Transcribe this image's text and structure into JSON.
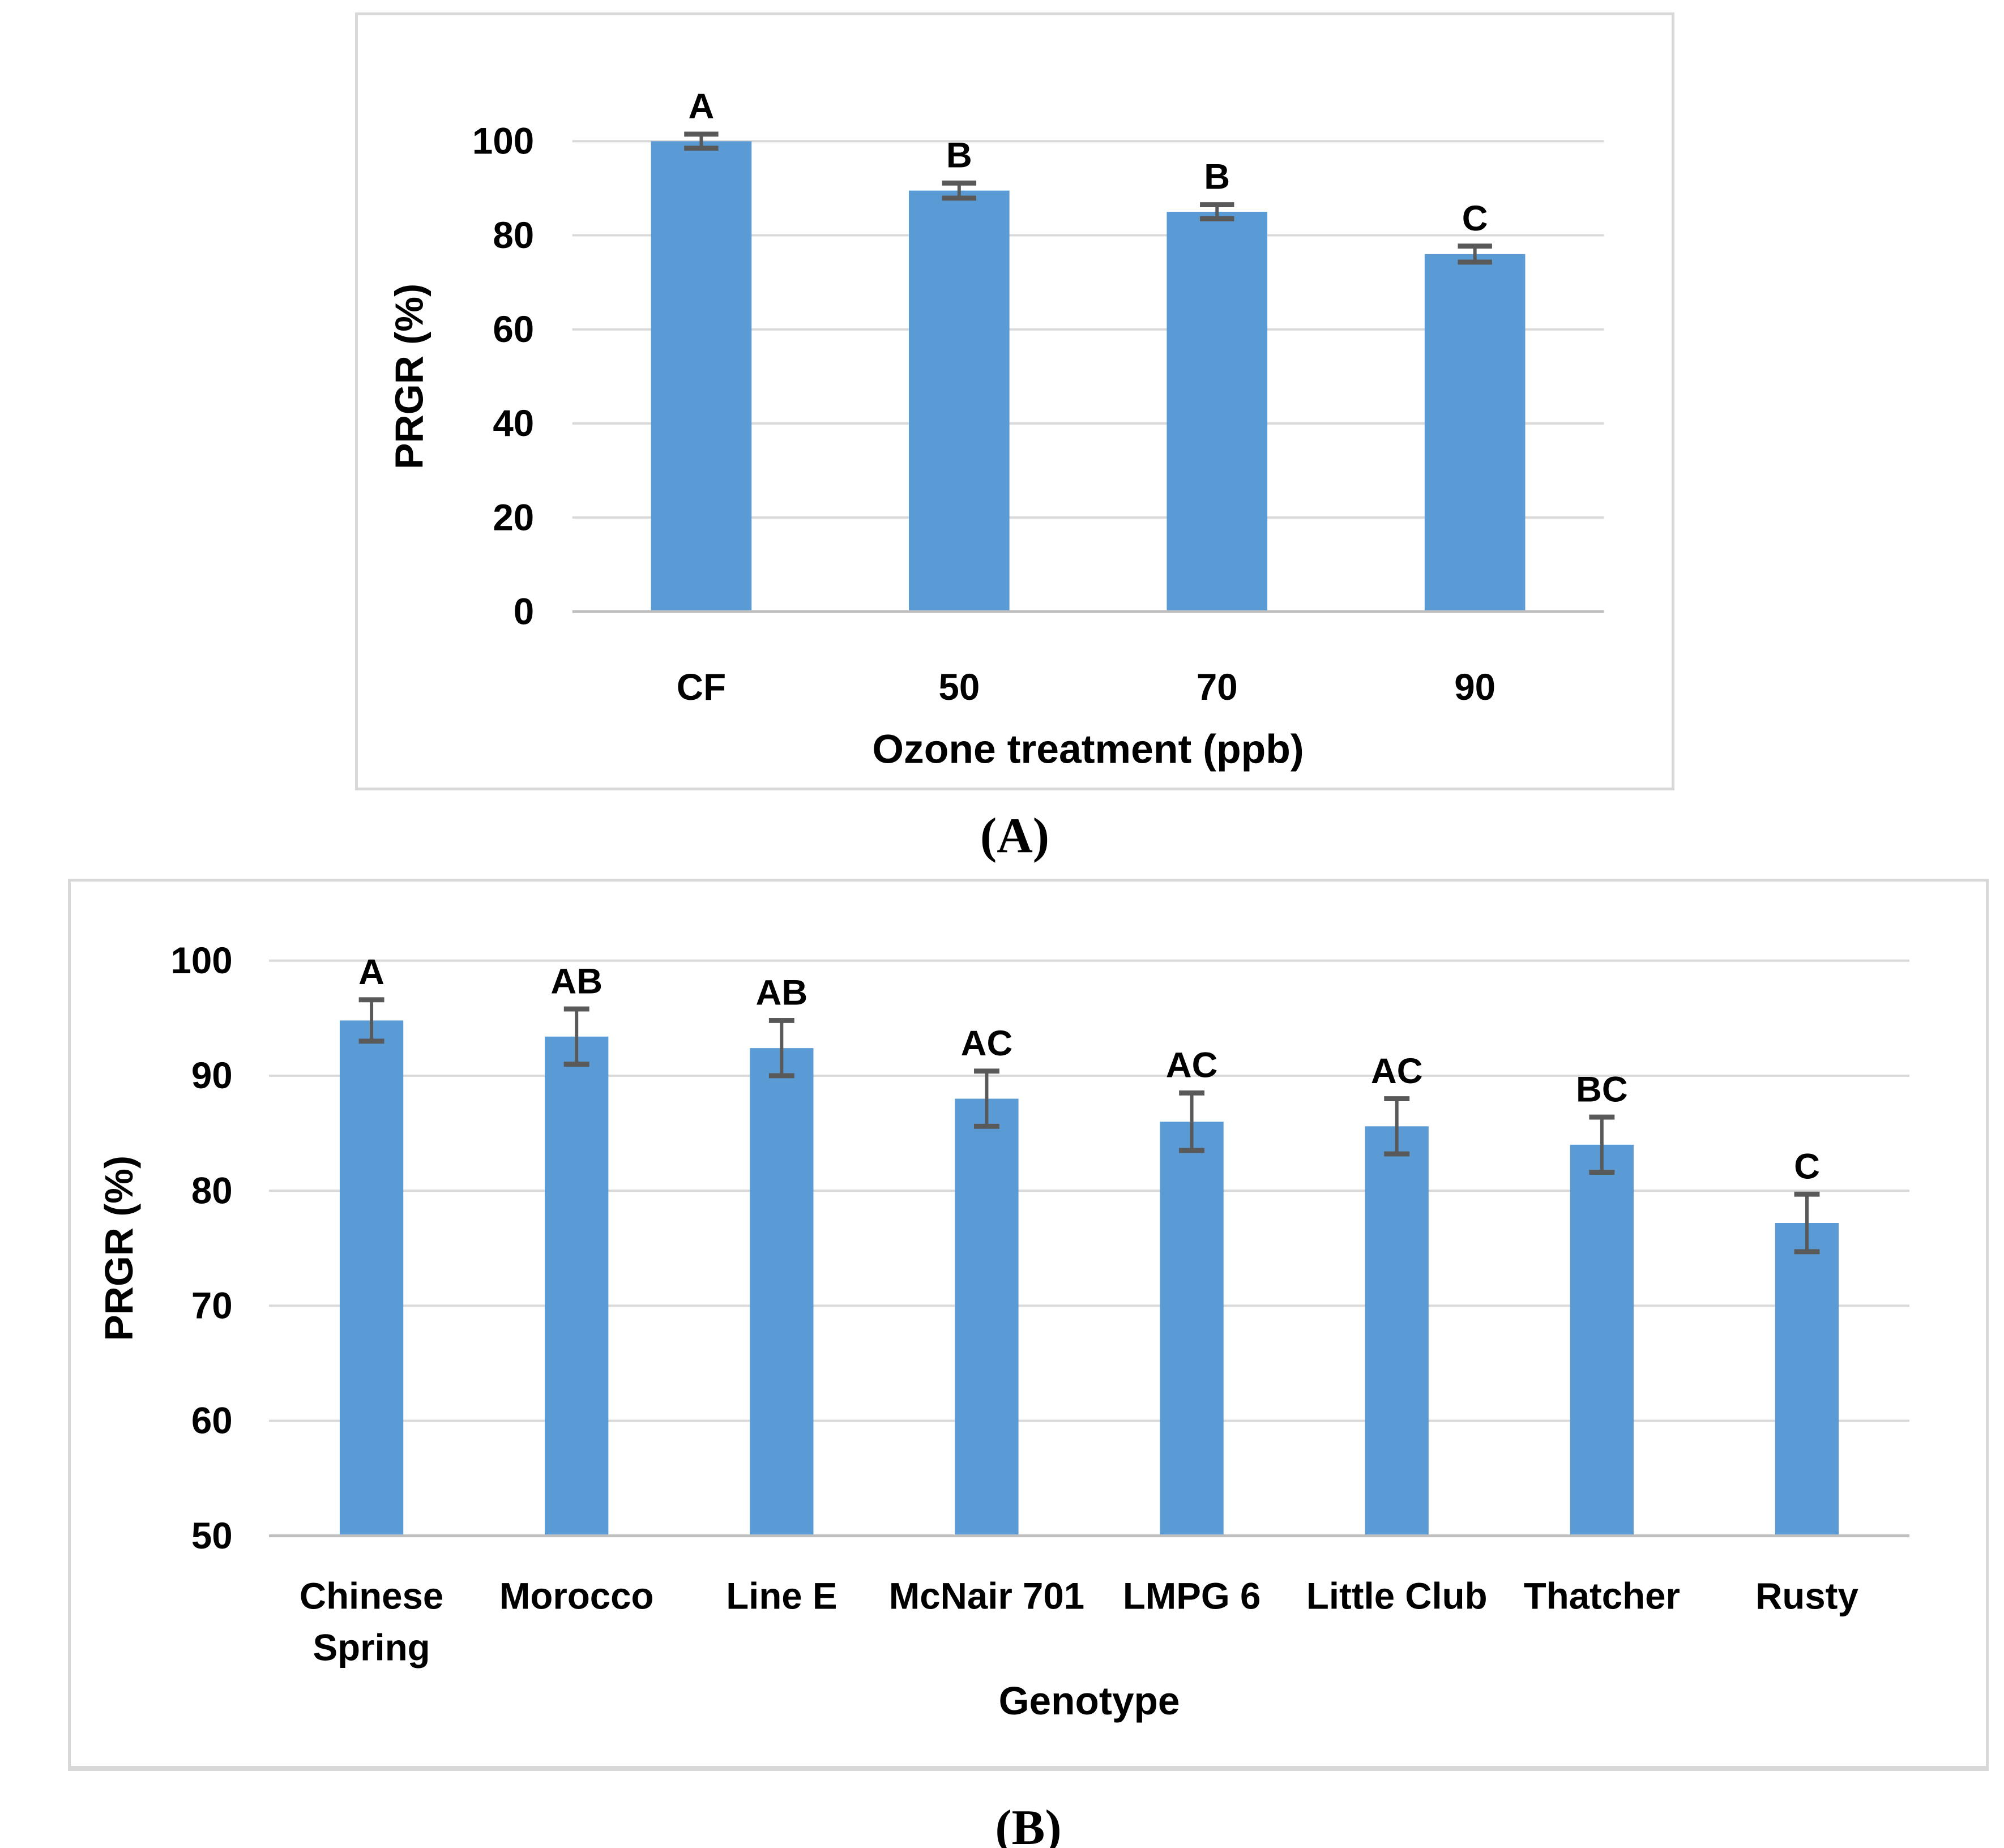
{
  "figure": {
    "captions": [
      {
        "label": "(A)"
      },
      {
        "label": "(B)"
      }
    ],
    "colors": {
      "bar_fill": "#5b9bd5",
      "gridline": "#d9d9d9",
      "axis_line": "#bfbfbf",
      "error_bar": "#595959",
      "text": "#000000",
      "panel_border": "#d8d8d8",
      "background": "#ffffff"
    }
  },
  "chart_data": [
    {
      "id": "A",
      "type": "bar",
      "panel_label": "(A)",
      "title": "",
      "xlabel": "Ozone treatment (ppb)",
      "ylabel": "PRGR (%)",
      "categories": [
        "CF",
        "50",
        "70",
        "90"
      ],
      "values": [
        100,
        89.5,
        85,
        76
      ],
      "error_bars": [
        1.5,
        1.6,
        1.5,
        1.7
      ],
      "sig_letters": [
        "A",
        "B",
        "B",
        "C"
      ],
      "ylim": [
        0,
        100
      ],
      "yticks": [
        0,
        20,
        40,
        60,
        80,
        100
      ],
      "grid": true,
      "legend": "none"
    },
    {
      "id": "B",
      "type": "bar",
      "panel_label": "(B)",
      "title": "",
      "xlabel": "Genotype",
      "ylabel": "PRGR (%)",
      "categories": [
        "Chinese\nSpring",
        "Morocco",
        "Line E",
        "McNair 701",
        "LMPG 6",
        "Little Club",
        "Thatcher",
        "Rusty"
      ],
      "values": [
        94.8,
        93.4,
        92.4,
        88,
        86,
        85.6,
        84,
        77.2
      ],
      "error_bars": [
        1.8,
        2.4,
        2.4,
        2.4,
        2.5,
        2.4,
        2.4,
        2.5
      ],
      "sig_letters": [
        "A",
        "AB",
        "AB",
        "AC",
        "AC",
        "AC",
        "BC",
        "C"
      ],
      "ylim": [
        50,
        100
      ],
      "yticks": [
        50,
        60,
        70,
        80,
        90,
        100
      ],
      "grid": true,
      "legend": "none"
    }
  ]
}
